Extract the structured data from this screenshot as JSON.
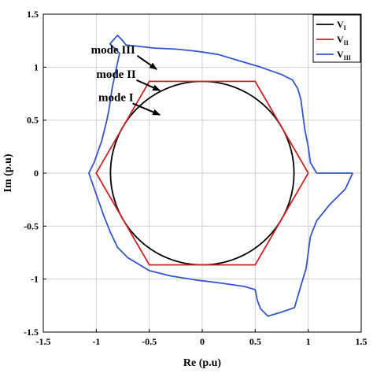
{
  "chart_data": {
    "type": "line",
    "xlabel": "Re (p.u)",
    "ylabel": "Im (p.u)",
    "xlim": [
      -1.5,
      1.5
    ],
    "ylim": [
      -1.5,
      1.5
    ],
    "xticks": [
      "-1.5",
      "-1",
      "-0.5",
      "0",
      "0.5",
      "1",
      "1.5"
    ],
    "yticks": [
      "1.5",
      "1",
      "0.5",
      "0",
      "-0.5",
      "-1",
      "-1.5"
    ],
    "grid": true,
    "legend_position": "top-right",
    "series": [
      {
        "name": "V",
        "subscript": "I",
        "color": "#000000",
        "shape": "circle",
        "radius": 0.866
      },
      {
        "name": "V",
        "subscript": "II",
        "color": "#cc2222",
        "x": [
          1.0,
          0.5,
          -0.5,
          -1.0,
          -0.5,
          0.5,
          1.0
        ],
        "y": [
          0,
          0.866,
          0.866,
          0,
          -0.866,
          -0.866,
          0
        ]
      },
      {
        "name": "V",
        "subscript": "III",
        "color": "#3355cc",
        "x": [
          1.42,
          1.2,
          1.08,
          1.02,
          1.0,
          0.97,
          0.95,
          0.93,
          0.9,
          0.85,
          0.75,
          0.55,
          0.35,
          0.15,
          -0.05,
          -0.25,
          -0.45,
          -0.72,
          -0.75,
          -0.8,
          -0.87,
          -0.78,
          -0.82,
          -0.85,
          -0.88,
          -0.9,
          -0.95,
          -1.02,
          -1.07,
          -1.0,
          -0.93,
          -0.87,
          -0.8,
          -0.7,
          -0.5,
          -0.3,
          -0.05,
          0.2,
          0.4,
          0.5,
          0.52,
          0.55,
          0.62,
          0.72,
          0.87,
          0.95,
          0.98,
          1.0,
          1.02,
          1.08,
          1.2,
          1.35,
          1.42
        ],
        "y": [
          0,
          0,
          0,
          0.1,
          0.25,
          0.4,
          0.55,
          0.7,
          0.8,
          0.88,
          0.93,
          1.0,
          1.06,
          1.12,
          1.15,
          1.17,
          1.18,
          1.21,
          1.25,
          1.3,
          1.22,
          1.13,
          0.95,
          0.8,
          0.6,
          0.5,
          0.3,
          0.1,
          0,
          -0.2,
          -0.4,
          -0.55,
          -0.7,
          -0.8,
          -0.92,
          -0.97,
          -1.01,
          -1.04,
          -1.07,
          -1.1,
          -1.2,
          -1.28,
          -1.35,
          -1.32,
          -1.27,
          -1.0,
          -0.9,
          -0.75,
          -0.6,
          -0.45,
          -0.3,
          -0.15,
          0
        ]
      }
    ],
    "annotations": [
      {
        "text": "mode III",
        "x": -1.05,
        "y": 1.13,
        "arrow_to": [
          -0.43,
          0.98
        ]
      },
      {
        "text": "mode II",
        "x": -1.0,
        "y": 0.9,
        "arrow_to": [
          -0.4,
          0.78
        ]
      },
      {
        "text": "mode I",
        "x": -0.98,
        "y": 0.68,
        "arrow_to": [
          -0.4,
          0.55
        ]
      }
    ]
  }
}
